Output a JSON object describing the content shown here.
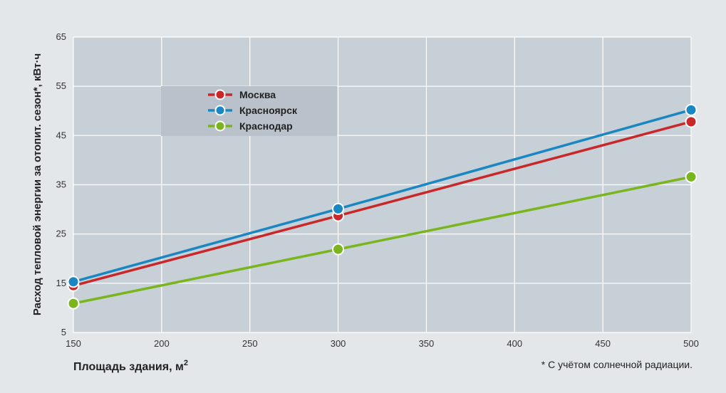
{
  "chart_data": {
    "type": "line",
    "xlabel": "Площадь здания, м",
    "xlabel_sup": "2",
    "ylabel": "Расход тепловой энергии за отопит. сезон*, кВт·ч",
    "footnote": "* С учётом солнечной радиации.",
    "x": [
      150,
      300,
      500
    ],
    "xlim": [
      150,
      500
    ],
    "ylim": [
      5,
      65
    ],
    "xticks": [
      150,
      200,
      250,
      300,
      350,
      400,
      450,
      500
    ],
    "yticks": [
      5,
      15,
      25,
      35,
      45,
      55,
      65
    ],
    "grid": true,
    "legend_position": "top-left",
    "series": [
      {
        "name": "Москва",
        "color": "#c8282a",
        "values": [
          14.5,
          28.7,
          47.8
        ]
      },
      {
        "name": "Красноярск",
        "color": "#1a87c2",
        "values": [
          15.3,
          30.1,
          50.2
        ]
      },
      {
        "name": "Краснодар",
        "color": "#7ab51d",
        "values": [
          10.9,
          21.9,
          36.6
        ]
      }
    ]
  }
}
